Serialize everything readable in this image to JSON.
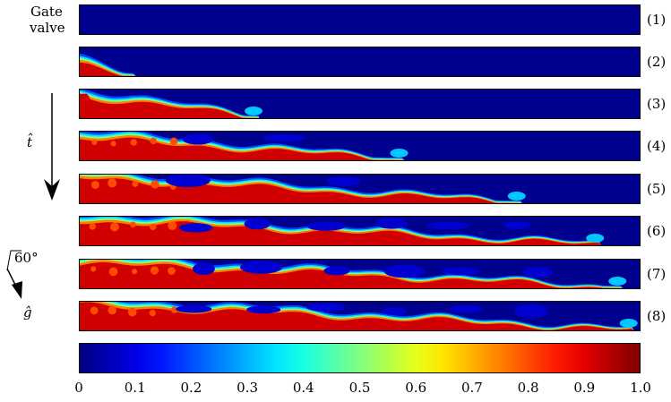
{
  "gate_valve_label": [
    "Gate",
    "valve"
  ],
  "time_axis_label": "t̂",
  "gravity_label": "ĝ",
  "angle_label": "60°",
  "panels": [
    {
      "label": "(1)",
      "front": 0.0
    },
    {
      "label": "(2)",
      "front": 0.1
    },
    {
      "label": "(3)",
      "front": 0.32
    },
    {
      "label": "(4)",
      "front": 0.58
    },
    {
      "label": "(5)",
      "front": 0.79
    },
    {
      "label": "(6)",
      "front": 0.93
    },
    {
      "label": "(7)",
      "front": 0.97
    },
    {
      "label": "(8)",
      "front": 0.99
    }
  ],
  "colorbar": {
    "ticks": [
      "0",
      "0.1",
      "0.2",
      "0.3",
      "0.4",
      "0.5",
      "0.6",
      "0.7",
      "0.8",
      "0.9",
      "1.0"
    ],
    "colormap": "jet"
  }
}
